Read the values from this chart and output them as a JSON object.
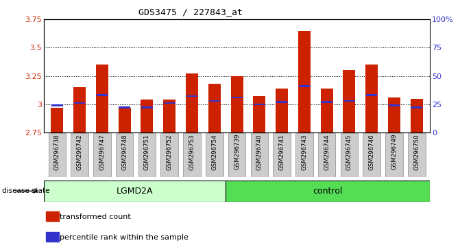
{
  "title": "GDS3475 / 227843_at",
  "samples": [
    "GSM296738",
    "GSM296742",
    "GSM296747",
    "GSM296748",
    "GSM296751",
    "GSM296752",
    "GSM296753",
    "GSM296754",
    "GSM296739",
    "GSM296740",
    "GSM296741",
    "GSM296743",
    "GSM296744",
    "GSM296745",
    "GSM296746",
    "GSM296749",
    "GSM296750"
  ],
  "groups": [
    "LGMD2A",
    "LGMD2A",
    "LGMD2A",
    "LGMD2A",
    "LGMD2A",
    "LGMD2A",
    "LGMD2A",
    "LGMD2A",
    "control",
    "control",
    "control",
    "control",
    "control",
    "control",
    "control",
    "control",
    "control"
  ],
  "bar_values": [
    2.97,
    3.15,
    3.35,
    2.97,
    3.04,
    3.04,
    3.27,
    3.18,
    3.25,
    3.07,
    3.14,
    3.65,
    3.14,
    3.3,
    3.35,
    3.06,
    3.05
  ],
  "percentile_values": [
    2.99,
    3.01,
    3.08,
    2.97,
    2.97,
    3.01,
    3.07,
    3.03,
    3.06,
    3.0,
    3.02,
    3.16,
    3.02,
    3.03,
    3.08,
    2.99,
    2.97
  ],
  "ymin": 2.75,
  "ymax": 3.75,
  "yticks": [
    2.75,
    3.0,
    3.25,
    3.5,
    3.75
  ],
  "ytick_labels": [
    "2.75",
    "3",
    "3.25",
    "3.5",
    "3.75"
  ],
  "right_yticks": [
    0,
    25,
    50,
    75,
    100
  ],
  "right_ytick_labels": [
    "0",
    "25",
    "50",
    "75",
    "100%"
  ],
  "bar_color": "#CC2200",
  "percentile_color": "#3333CC",
  "lgmd2a_color": "#CCFFCC",
  "control_color": "#55DD55",
  "label_color_red": "#CC2200",
  "label_color_blue": "#3333CC",
  "tick_bg_color": "#CCCCCC",
  "legend_red": "transformed count",
  "legend_blue": "percentile rank within the sample",
  "group_label_lgmd2a": "LGMD2A",
  "group_label_control": "control",
  "disease_state_label": "disease state"
}
